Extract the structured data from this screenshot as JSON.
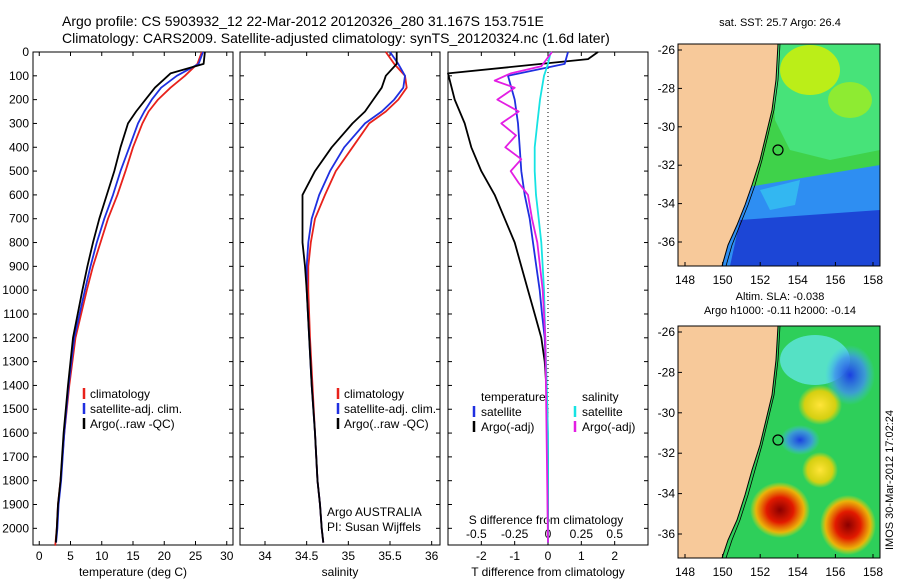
{
  "header": {
    "line1": "Argo profile: CS 5903932_12 22-Mar-2012 20120326_280 31.167S 153.751E",
    "line2": "Climatology: CARS2009. Satellite-adjusted climatology: synTS_20120324.nc (1.6d later)"
  },
  "side_stamp": "IMOS 30-Mar-2012 17:02:24",
  "colors": {
    "clim": "#e8211b",
    "sat": "#1f2fe0",
    "argo": "#000000",
    "sal_sat": "#16e3e3",
    "sal_argo": "#e31ee3",
    "land": "#f7c99a"
  },
  "chart_data": [
    {
      "type": "line",
      "xlabel": "temperature (deg C)",
      "xlim": [
        -1,
        31
      ],
      "ylim": [
        0,
        2070
      ],
      "xticks": [
        "0",
        "5",
        "10",
        "15",
        "20",
        "25",
        "30"
      ],
      "yticks": [
        "0",
        "100",
        "200",
        "300",
        "400",
        "500",
        "600",
        "700",
        "800",
        "900",
        "1000",
        "1100",
        "1200",
        "1300",
        "1400",
        "1500",
        "1600",
        "1700",
        "1800",
        "1900",
        "2000"
      ],
      "legend": [
        "climatology",
        "satellite-adj. clim.",
        "Argo(..raw -QC)"
      ],
      "series": [
        {
          "key": "clim",
          "x": [
            26,
            25.3,
            23.3,
            21,
            19,
            17.5,
            16.5,
            15,
            13.8,
            12.5,
            11,
            9.8,
            8.6,
            7.6,
            5.8,
            4.8,
            4,
            3.4,
            3,
            2.8,
            2.6,
            2.55,
            2.5
          ],
          "y": [
            0,
            50,
            100,
            150,
            200,
            250,
            300,
            400,
            500,
            600,
            700,
            800,
            900,
            1000,
            1200,
            1400,
            1600,
            1800,
            1900,
            2000,
            2060,
            2070,
            2070
          ]
        },
        {
          "key": "sat",
          "x": [
            26.2,
            25.5,
            22,
            19.5,
            18,
            16.8,
            15.8,
            14.4,
            13,
            11.8,
            10.4,
            9.2,
            8.2,
            7.3,
            5.6,
            4.7,
            4,
            3.5,
            3.1,
            2.9,
            2.7
          ],
          "y": [
            0,
            50,
            100,
            150,
            200,
            250,
            300,
            400,
            500,
            600,
            700,
            800,
            900,
            1000,
            1200,
            1400,
            1600,
            1800,
            1900,
            2000,
            2060
          ]
        },
        {
          "key": "argo",
          "x": [
            26.5,
            26.3,
            21,
            18.5,
            17,
            15.5,
            14.2,
            13,
            12,
            10.8,
            9.6,
            8.6,
            7.7,
            6.9,
            5.4,
            4.6,
            3.9,
            3.4,
            3,
            2.8,
            2.65
          ],
          "y": [
            0,
            50,
            90,
            150,
            200,
            250,
            300,
            400,
            500,
            600,
            700,
            800,
            900,
            1000,
            1200,
            1400,
            1600,
            1800,
            1900,
            2000,
            2060
          ]
        }
      ]
    },
    {
      "type": "line",
      "xlabel": "salinity",
      "xlim": [
        33.7,
        36.1
      ],
      "ylim": [
        0,
        2070
      ],
      "xticks": [
        "34",
        "34.5",
        "35",
        "35.5",
        "36"
      ],
      "legend": [
        "climatology",
        "satellite-adj. clim.",
        "Argo(..raw -QC)"
      ],
      "annotation": [
        "Argo AUSTRALIA",
        "PI: Susan Wijffels"
      ],
      "series": [
        {
          "key": "clim",
          "x": [
            35.45,
            35.55,
            35.68,
            35.7,
            35.6,
            35.45,
            35.25,
            35.05,
            34.85,
            34.72,
            34.6,
            34.55,
            34.52,
            34.52,
            34.54,
            34.57,
            34.6,
            34.63,
            34.66,
            34.68,
            34.7
          ],
          "y": [
            0,
            50,
            100,
            150,
            200,
            250,
            300,
            400,
            500,
            600,
            700,
            800,
            900,
            1000,
            1200,
            1400,
            1600,
            1800,
            1900,
            2000,
            2060
          ]
        },
        {
          "key": "sat",
          "x": [
            35.5,
            35.6,
            35.68,
            35.66,
            35.55,
            35.4,
            35.2,
            34.95,
            34.78,
            34.65,
            34.56,
            34.52,
            34.5,
            34.5,
            34.53,
            34.56,
            34.6,
            34.63,
            34.66,
            34.68,
            34.7
          ],
          "y": [
            0,
            50,
            100,
            150,
            200,
            250,
            300,
            400,
            500,
            600,
            700,
            800,
            900,
            1000,
            1200,
            1400,
            1600,
            1800,
            1900,
            2000,
            2060
          ]
        },
        {
          "key": "argo",
          "x": [
            35.58,
            35.58,
            35.45,
            35.4,
            35.3,
            35.2,
            35.05,
            34.8,
            34.6,
            34.45,
            34.45,
            34.45,
            34.48,
            34.5,
            34.53,
            34.56,
            34.6,
            34.63,
            34.66,
            34.68,
            34.7
          ],
          "y": [
            0,
            50,
            100,
            150,
            200,
            250,
            300,
            400,
            500,
            600,
            700,
            800,
            900,
            1000,
            1200,
            1400,
            1600,
            1800,
            1900,
            2000,
            2060
          ]
        }
      ]
    },
    {
      "type": "line",
      "xlabel": "T difference from climatology",
      "x2label": "S difference from climatology",
      "xlim": [
        -3,
        3
      ],
      "ylim": [
        0,
        2070
      ],
      "xticks": [
        "-2",
        "-1",
        "0",
        "1",
        "2"
      ],
      "x2ticks": [
        "-0.5",
        "-0.25",
        "0",
        "0.25",
        "0.5"
      ],
      "legend_left": [
        "temperature",
        "satellite",
        "Argo(-adj)"
      ],
      "legend_right": [
        "salinity",
        "satellite",
        "Argo(-adj)"
      ],
      "series": [
        {
          "key": "argo",
          "x": [
            1.5,
            1.2,
            -3.0,
            -2.8,
            -2.5,
            -2.3,
            -2.0,
            -1.6,
            -1.3,
            -1.0,
            -0.8,
            -0.6,
            -0.4,
            -0.2,
            -0.1,
            -0.05,
            -0.02,
            0,
            0
          ],
          "y": [
            0,
            30,
            90,
            200,
            300,
            400,
            500,
            600,
            700,
            800,
            900,
            1000,
            1100,
            1200,
            1300,
            1400,
            1500,
            1700,
            2060
          ]
        },
        {
          "key": "sat",
          "x": [
            0.6,
            0.5,
            -1.2,
            -1.0,
            -0.9,
            -0.85,
            -0.8,
            -0.7,
            -0.55,
            -0.45,
            -0.35,
            -0.25,
            -0.18,
            -0.1,
            -0.05,
            -0.02,
            0
          ],
          "y": [
            0,
            50,
            100,
            200,
            300,
            400,
            500,
            600,
            700,
            800,
            900,
            1000,
            1100,
            1200,
            1400,
            1600,
            2060
          ]
        },
        {
          "key": "sal_sat",
          "x": [
            0.02,
            0.0,
            -0.03,
            -0.06,
            -0.08,
            -0.1,
            -0.1,
            -0.09,
            -0.07,
            -0.05,
            -0.04,
            -0.03,
            -0.02,
            -0.01,
            0,
            0,
            0
          ],
          "y": [
            0,
            50,
            100,
            200,
            300,
            400,
            500,
            600,
            700,
            800,
            900,
            1000,
            1200,
            1400,
            1600,
            1800,
            2060
          ]
        },
        {
          "key": "sal_argo",
          "x": [
            0.03,
            -0.05,
            -0.28,
            -0.4,
            -0.25,
            -0.38,
            -0.22,
            -0.35,
            -0.24,
            -0.32,
            -0.2,
            -0.28,
            -0.22,
            -0.15,
            -0.12,
            -0.08,
            -0.06,
            -0.04,
            -0.02,
            0
          ],
          "y": [
            0,
            60,
            90,
            120,
            150,
            200,
            250,
            300,
            350,
            400,
            450,
            500,
            550,
            600,
            700,
            800,
            900,
            1000,
            1200,
            2060
          ]
        }
      ]
    },
    {
      "type": "heatmap",
      "title": "sat. SST: 25.7  Argo: 26.4",
      "xticks": [
        "148",
        "150",
        "152",
        "154",
        "156",
        "158"
      ],
      "yticks": [
        "-26",
        "-28",
        "-30",
        "-32",
        "-34",
        "-36"
      ]
    },
    {
      "type": "heatmap",
      "title_line1": "Altim. SLA: -0.038",
      "title_line2": "Argo h1000: -0.11  h2000: -0.14",
      "xticks": [
        "148",
        "150",
        "152",
        "154",
        "156",
        "158"
      ],
      "yticks": [
        "-26",
        "-28",
        "-30",
        "-32",
        "-34",
        "-36"
      ]
    }
  ]
}
